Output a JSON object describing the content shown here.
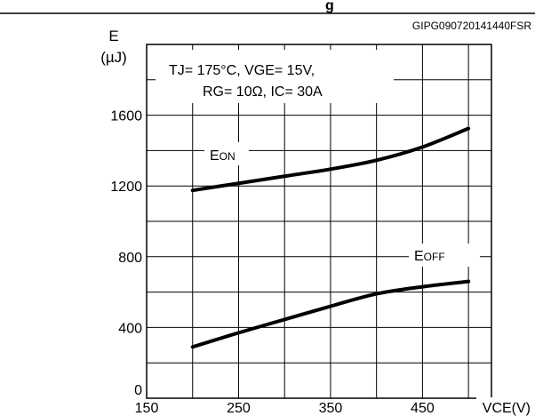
{
  "header": {
    "title_fragment": "g"
  },
  "chart_data": {
    "type": "line",
    "figure_code": "GIPG090720141440FSR",
    "conditions": {
      "line1": "TJ= 175°C, VGE= 15V,",
      "line2": "RG= 10Ω, IC= 30A"
    },
    "ylabel": {
      "symbol": "E",
      "unit": "(µJ)"
    },
    "xlabel": "VCE(V)",
    "xlim": [
      150,
      525
    ],
    "ylim": [
      0,
      2000
    ],
    "x_ticks": [
      150,
      250,
      350,
      450
    ],
    "y_ticks": [
      0,
      400,
      800,
      1200,
      1600
    ],
    "x_tick_labels": [
      "150",
      "250",
      "350",
      "450"
    ],
    "y_tick_labels": [
      "0",
      "400",
      "800",
      "1200",
      "1600"
    ],
    "grid": true,
    "series": [
      {
        "name": "EON",
        "x": [
          200,
          250,
          300,
          350,
          400,
          450,
          500
        ],
        "y": [
          1175,
          1215,
          1255,
          1295,
          1345,
          1420,
          1525
        ]
      },
      {
        "name": "EOFF",
        "x": [
          200,
          250,
          300,
          350,
          400,
          450,
          500
        ],
        "y": [
          290,
          370,
          445,
          520,
          590,
          630,
          660
        ]
      }
    ],
    "series_labels": [
      {
        "main": "E",
        "sub": "ON"
      },
      {
        "main": "E",
        "sub": "OFF"
      }
    ]
  }
}
